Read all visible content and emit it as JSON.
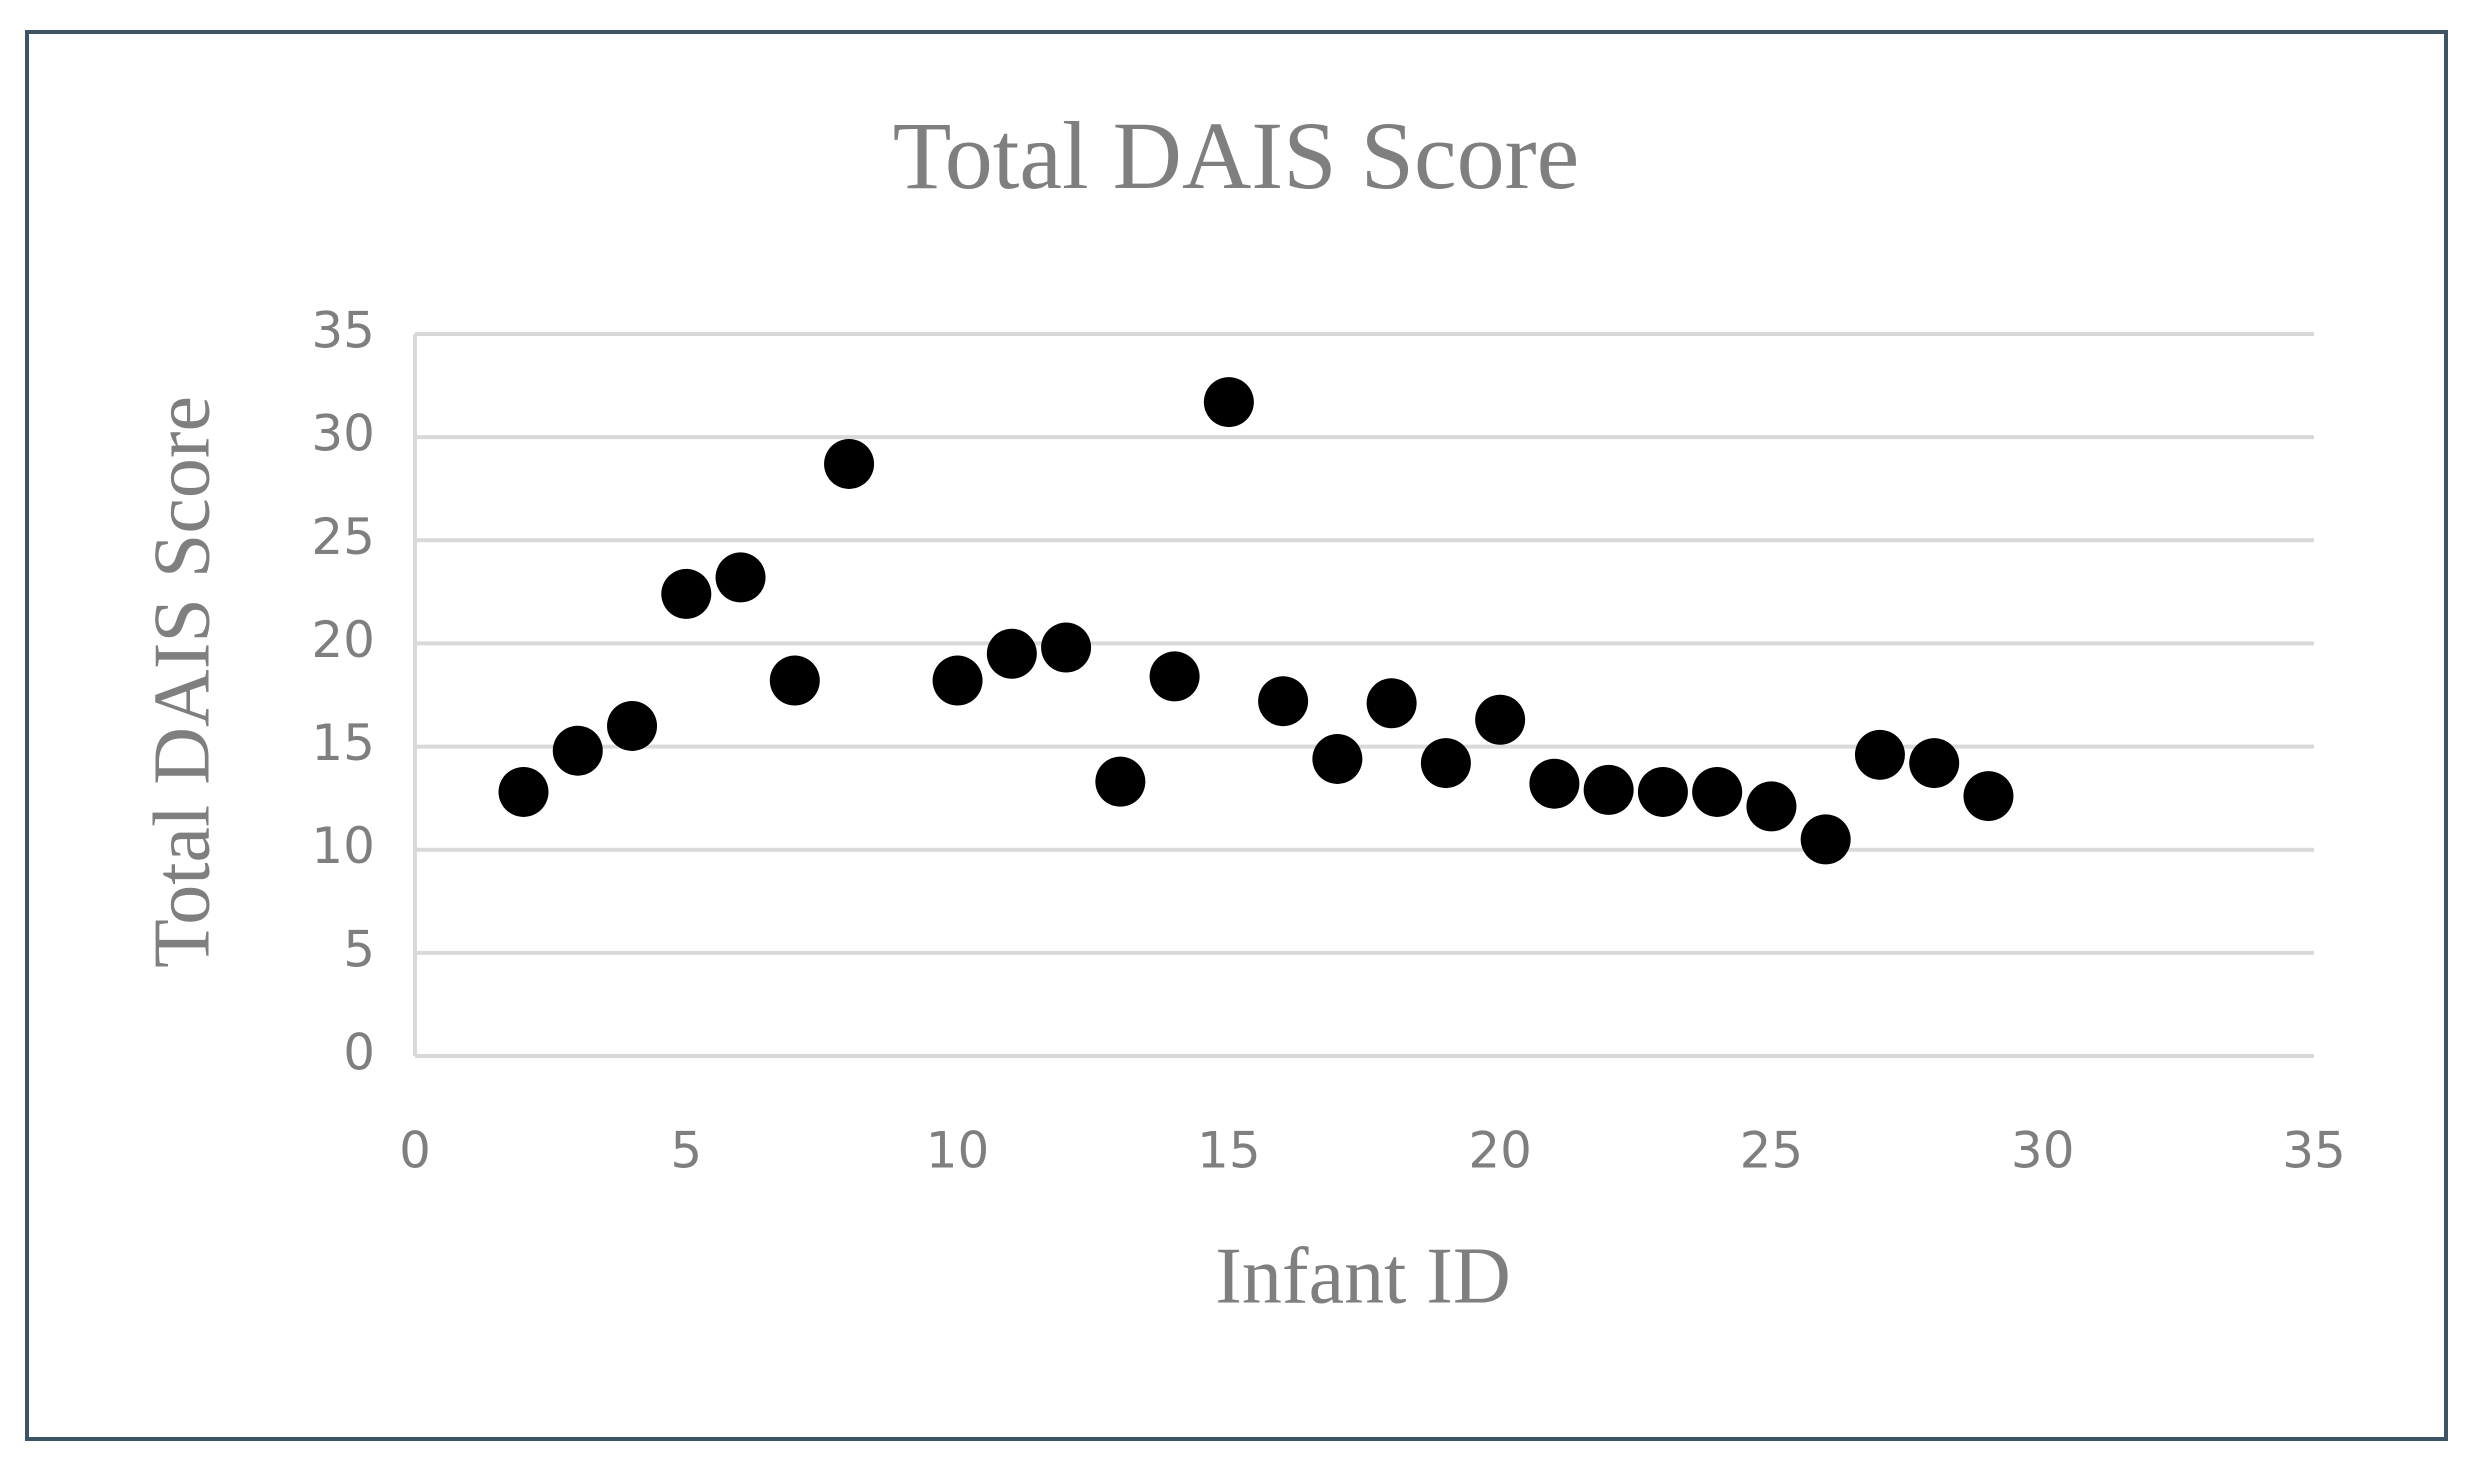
{
  "chart_data": {
    "type": "scatter",
    "title": "Total DAIS Score",
    "x_label": "Infant ID",
    "y_label": "Total DAIS Score",
    "x": [
      2,
      3,
      4,
      5,
      6,
      7,
      8,
      10,
      11,
      12,
      13,
      14,
      15,
      16,
      17,
      18,
      19,
      20,
      21,
      22,
      23,
      24,
      25,
      26,
      27,
      28,
      29
    ],
    "values": [
      12.8,
      14.8,
      16.0,
      22.4,
      23.2,
      18.2,
      28.7,
      18.2,
      19.5,
      19.8,
      13.3,
      18.4,
      31.7,
      17.2,
      14.4,
      17.1,
      14.2,
      16.3,
      13.2,
      12.9,
      12.8,
      12.8,
      12.1,
      10.5,
      14.6,
      14.2,
      12.6
    ],
    "color": "#000000",
    "xlim": [
      0,
      35
    ],
    "xticks": [
      0,
      5,
      10,
      15,
      20,
      25,
      30,
      35
    ],
    "ylim": [
      0,
      35
    ],
    "yticks": [
      0,
      5,
      10,
      15,
      20,
      25,
      30,
      35
    ],
    "grid": true
  }
}
